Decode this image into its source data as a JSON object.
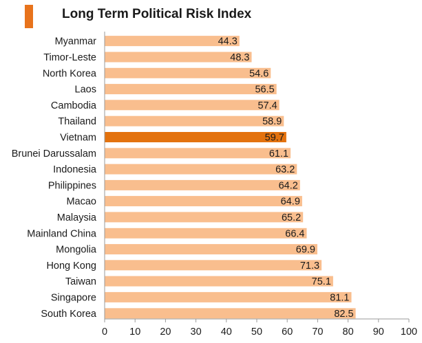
{
  "colors": {
    "accent": "#E8731C",
    "bar": "#F9BE8E",
    "highlight": "#E3720E",
    "axis": "#9a9a9a"
  },
  "chart_data": {
    "type": "bar",
    "orientation": "horizontal",
    "title": "Long Term Political Risk Index",
    "categories": [
      "Myanmar",
      "Timor-Leste",
      "North Korea",
      "Laos",
      "Cambodia",
      "Thailand",
      "Vietnam",
      "Brunei Darussalam",
      "Indonesia",
      "Philippines",
      "Macao",
      "Malaysia",
      "Mainland China",
      "Mongolia",
      "Hong Kong",
      "Taiwan",
      "Singapore",
      "South Korea"
    ],
    "values": [
      44.3,
      48.3,
      54.6,
      56.5,
      57.4,
      58.9,
      59.7,
      61.1,
      63.2,
      64.2,
      64.9,
      65.2,
      66.4,
      69.9,
      71.3,
      75.1,
      81.1,
      82.5
    ],
    "value_labels": [
      "44.3",
      "48.3",
      "54.6",
      "56.5",
      "57.4",
      "58.9",
      "59.7",
      "61.1",
      "63.2",
      "64.2",
      "64.9",
      "65.2",
      "66.4",
      "69.9",
      "71.3",
      "75.1",
      "81.1",
      "82.5"
    ],
    "highlight": "Vietnam",
    "xlim": [
      0,
      100
    ],
    "xticks": [
      0,
      10,
      20,
      30,
      40,
      50,
      60,
      70,
      80,
      90,
      100
    ],
    "xlabel": "",
    "ylabel": "",
    "grid": false,
    "legend": "none"
  }
}
